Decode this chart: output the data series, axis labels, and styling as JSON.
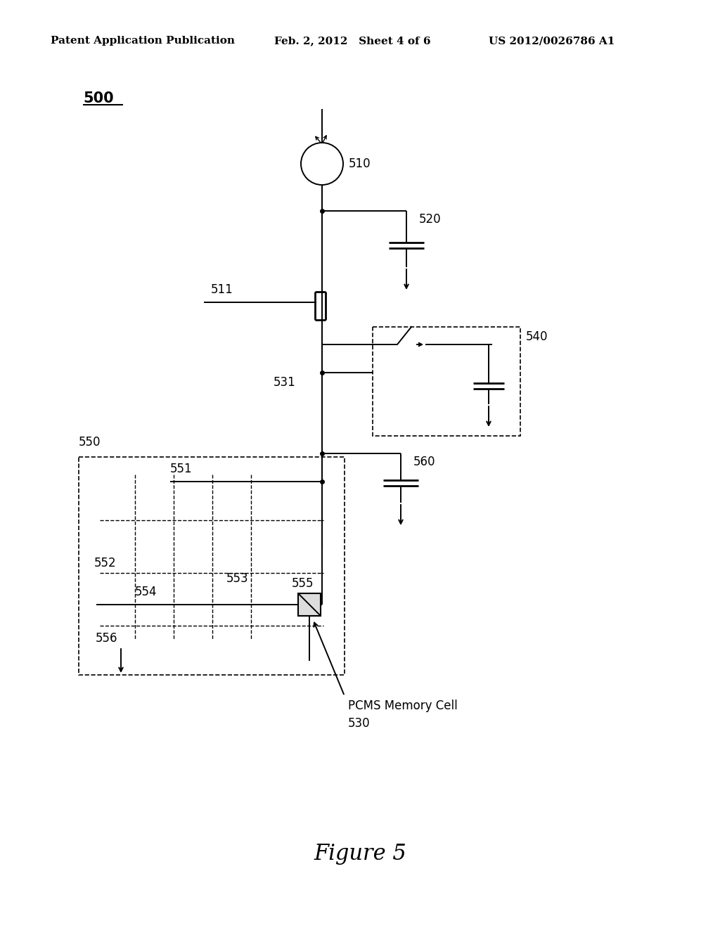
{
  "bg_color": "#ffffff",
  "header_left": "Patent Application Publication",
  "header_mid": "Feb. 2, 2012   Sheet 4 of 6",
  "header_right": "US 2012/0026786 A1",
  "figure_caption": "Figure 5",
  "lw": 1.4,
  "lw_thick": 2.0,
  "lw_thin": 1.0
}
